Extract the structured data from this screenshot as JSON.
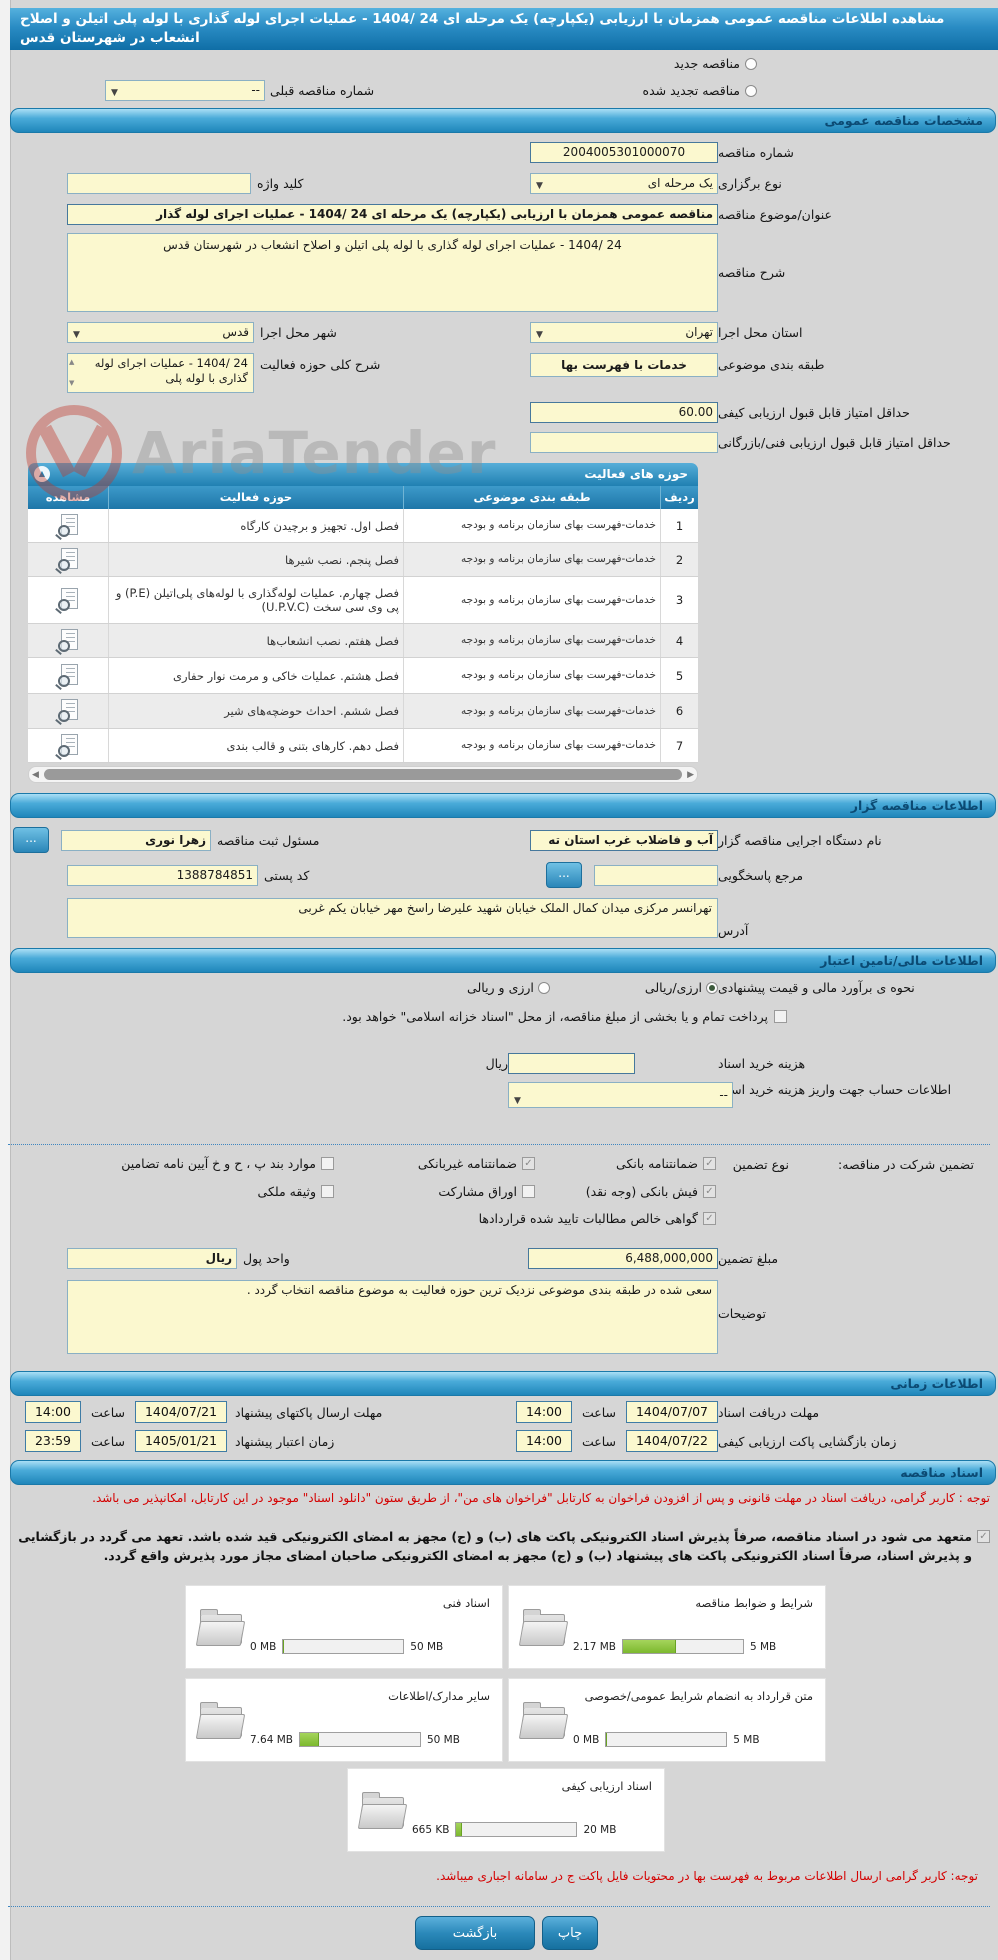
{
  "title": "مشاهده اطلاعات مناقصه عمومی همزمان با ارزیابی (یکپارچه) یک مرحله ای 24 /1404 - عملیات اجرای لوله گذاری با لوله پلی اتیلن و اصلاح انشعاب در شهرستان قدس",
  "tender_type": {
    "new_label": "مناقصه جدید",
    "renewed_label": "مناقصه تجدید شده",
    "prev_number_label": "شماره مناقصه قبلی",
    "prev_number_value": "--"
  },
  "general": {
    "section_title": "مشخصات مناقصه عمومی",
    "number_label": "شماره مناقصه",
    "number_value": "2004005301000070",
    "hold_type_label": "نوع برگزاری",
    "hold_type_value": "یک مرحله ای",
    "keyword_label": "کلید واژه",
    "keyword_value": "",
    "subject_label": "عنوان/موضوع مناقصه",
    "subject_value": "مناقصه عمومی همزمان با ارزیابی (یکپارچه) یک مرحله ای 24 /1404 - عملیات اجرای لوله گذار",
    "desc_label": "شرح مناقصه",
    "desc_value": "24 /1404 - عملیات اجرای لوله گذاری با لوله پلی اتیلن و اصلاح انشعاب در شهرستان قدس",
    "province_label": "استان محل اجرا",
    "province_value": "تهران",
    "city_label": "شهر محل اجرا",
    "city_value": "قدس",
    "category_label": "طبقه بندی موضوعی",
    "category_value": "خدمات با فهرست بها",
    "activity_desc_label": "شرح کلی حوزه فعالیت",
    "activity_desc_value": "24 /1404 - عملیات اجرای لوله گذاری با لوله پلی",
    "min_quality_label": "حداقل امتیاز قابل قبول ارزیابی کیفی",
    "min_quality_value": "60.00",
    "min_tech_label": "حداقل امتیاز قابل قبول ارزیابی فنی/بازرگانی",
    "min_tech_value": ""
  },
  "activity_table": {
    "title": "حوزه های فعالیت",
    "columns": [
      "ردیف",
      "طبقه بندی موضوعی",
      "حوزه فعالیت",
      "مشاهده"
    ],
    "category_common": "خدمات-فهرست بهای سازمان برنامه و بودجه",
    "rows": [
      {
        "row": "1",
        "category": "خدمات-فهرست بهای سازمان برنامه و بودجه",
        "activity": "فصل اول. تجهیز و برچیدن کارگاه"
      },
      {
        "row": "2",
        "category": "خدمات-فهرست بهای سازمان برنامه و بودجه",
        "activity": "فصل پنجم. نصب شیرها"
      },
      {
        "row": "3",
        "category": "خدمات-فهرست بهای سازمان برنامه و بودجه",
        "activity": "فصل چهارم. عملیات لوله‌گذاری با لوله‌های پلی‌اتیلن (P.E) و پی وی سی سخت (U.P.V.C)"
      },
      {
        "row": "4",
        "category": "خدمات-فهرست بهای سازمان برنامه و بودجه",
        "activity": "فصل هفتم. نصب انشعاب‌ها"
      },
      {
        "row": "5",
        "category": "خدمات-فهرست بهای سازمان برنامه و بودجه",
        "activity": "فصل هشتم. عملیات خاکی و مرمت نوار حفاری"
      },
      {
        "row": "6",
        "category": "خدمات-فهرست بهای سازمان برنامه و بودجه",
        "activity": "فصل ششم. احداث حوضچه‌های شیر"
      },
      {
        "row": "7",
        "category": "خدمات-فهرست بهای سازمان برنامه و بودجه",
        "activity": "فصل دهم. کارهای بتنی و قالب بندی"
      }
    ]
  },
  "organizer": {
    "section_title": "اطلاعات مناقصه گزار",
    "agency_label": "نام دستگاه اجرایی مناقصه گزار",
    "agency_value": "آب و فاضلاب غرب استان ته",
    "registrar_label": "مسئول ثبت مناقصه",
    "registrar_value": "زهرا نوری",
    "reference_label": "مرجع پاسخگویی",
    "reference_value": "",
    "postal_label": "کد پستی",
    "postal_value": "1388784851",
    "address_label": "آدرس",
    "address_value": "تهرانسر مرکزی میدان کمال الملک خیابان شهید علیرضا راسخ مهر خیابان یکم غربی",
    "more_button": "..."
  },
  "financial": {
    "section_title": "اطلاعات مالی/تامین اعتبار",
    "estimate_label": "نحوه ی برآورد مالی و قیمت پیشنهادی",
    "estimate_options": [
      {
        "label": "ارزی/ریالی",
        "selected": true
      },
      {
        "label": "ارزی و ریالی",
        "selected": false
      }
    ],
    "treasury_label": "پرداخت تمام و یا بخشی از مبلغ مناقصه، از محل \"اسناد خزانه اسلامی\" خواهد بود.",
    "treasury_checked": false,
    "doc_fee_label": "هزینه خرید اسناد",
    "doc_fee_value": "",
    "doc_fee_unit": "ریال",
    "account_label": "اطلاعات حساب جهت واریز هزینه خرید اسناد",
    "account_value": "--",
    "guarantee_label": "تضمین شرکت در مناقصه:",
    "guarantee_type_label": "نوع تضمین",
    "guarantee_options": [
      {
        "label": "ضمانتنامه بانکی",
        "checked": true
      },
      {
        "label": "ضمانتنامه غیربانکی",
        "checked": true
      },
      {
        "label": "موارد بند پ ، ح و خ آیین نامه تضامین",
        "checked": false
      },
      {
        "label": "فیش بانکی (وجه نقد)",
        "checked": true
      },
      {
        "label": "اوراق مشارکت",
        "checked": false
      },
      {
        "label": "وثیقه ملکی",
        "checked": false
      },
      {
        "label": "گواهی خالص مطالبات تایید شده قراردادها",
        "checked": true
      }
    ],
    "amount_label": "مبلغ تضمین",
    "amount_value": "6,488,000,000",
    "currency_label": "واحد پول",
    "currency_value": "ریال",
    "notes_label": "توضیحات",
    "notes_value": "سعی شده در طبقه بندی موضوعی نزدیک ترین حوزه فعالیت به موضوع مناقصه انتخاب گردد ."
  },
  "timing": {
    "section_title": "اطلاعات زمانی",
    "rows": [
      {
        "label": "مهلت دریافت اسناد",
        "date": "1404/07/07",
        "time_label": "ساعت",
        "time": "14:00"
      },
      {
        "label": "مهلت ارسال پاکتهای پیشنهاد",
        "date": "1404/07/21",
        "time_label": "ساعت",
        "time": "14:00"
      },
      {
        "label": "زمان بازگشایی پاکت ارزیابی کیفی",
        "date": "1404/07/22",
        "time_label": "ساعت",
        "time": "14:00"
      },
      {
        "label": "زمان اعتبار پیشنهاد",
        "date": "1405/01/21",
        "time_label": "ساعت",
        "time": "23:59"
      }
    ]
  },
  "documents": {
    "section_title": "اسناد مناقصه",
    "notice": "توجه : کاربر گرامی، دریافت اسناد در مهلت قانونی و پس از افزودن فراخوان به کارتابل \"فراخوان های من\"، از طریق ستون \"دانلود اسناد\" موجود در این کارتابل، امکانپذیر می باشد.",
    "commitment_checked": true,
    "commitment": "متعهد می شود در اسناد مناقصه، صرفاً پذیرش اسناد الکترونیکی پاکت های (ب) و (ج) مجهز به امضای الکترونیکی قید شده باشد. تعهد می گردد در بازگشایی و پذیرش اسناد، صرفاً اسناد الکترونیکی پاکت های پیشنهاد (ب) و (ج) مجهز به امضای الکترونیکی صاحبان امضای مجاز مورد پذیرش واقع گردد.",
    "files": [
      {
        "title": "شرایط و ضوابط مناقصه",
        "used": "2.17 MB",
        "max": "5 MB",
        "percent": 43
      },
      {
        "title": "اسناد فنی",
        "used": "0 MB",
        "max": "50 MB",
        "percent": 0
      },
      {
        "title": "متن قرارداد به انضمام شرایط عمومی/خصوصی",
        "used": "0 MB",
        "max": "5 MB",
        "percent": 0
      },
      {
        "title": "سایر مدارک/اطلاعات",
        "used": "7.64 MB",
        "max": "50 MB",
        "percent": 15
      },
      {
        "title": "اسناد ارزیابی کیفی",
        "used": "665 KB",
        "max": "20 MB",
        "percent": 4
      }
    ],
    "footer_notice": "توجه: کاربر گرامی ارسال اطلاعات مربوط به فهرست بها در محتویات فایل پاکت ج در سامانه اجباری میباشد."
  },
  "actions": {
    "print": "چاپ",
    "back": "بازگشت"
  },
  "watermark": "AriaTender",
  "colors": {
    "accent_blue": "#2188bc",
    "input_yellow": "#fbf8cf",
    "progress_green": "#7cb92e",
    "notice_red": "#d40000"
  }
}
